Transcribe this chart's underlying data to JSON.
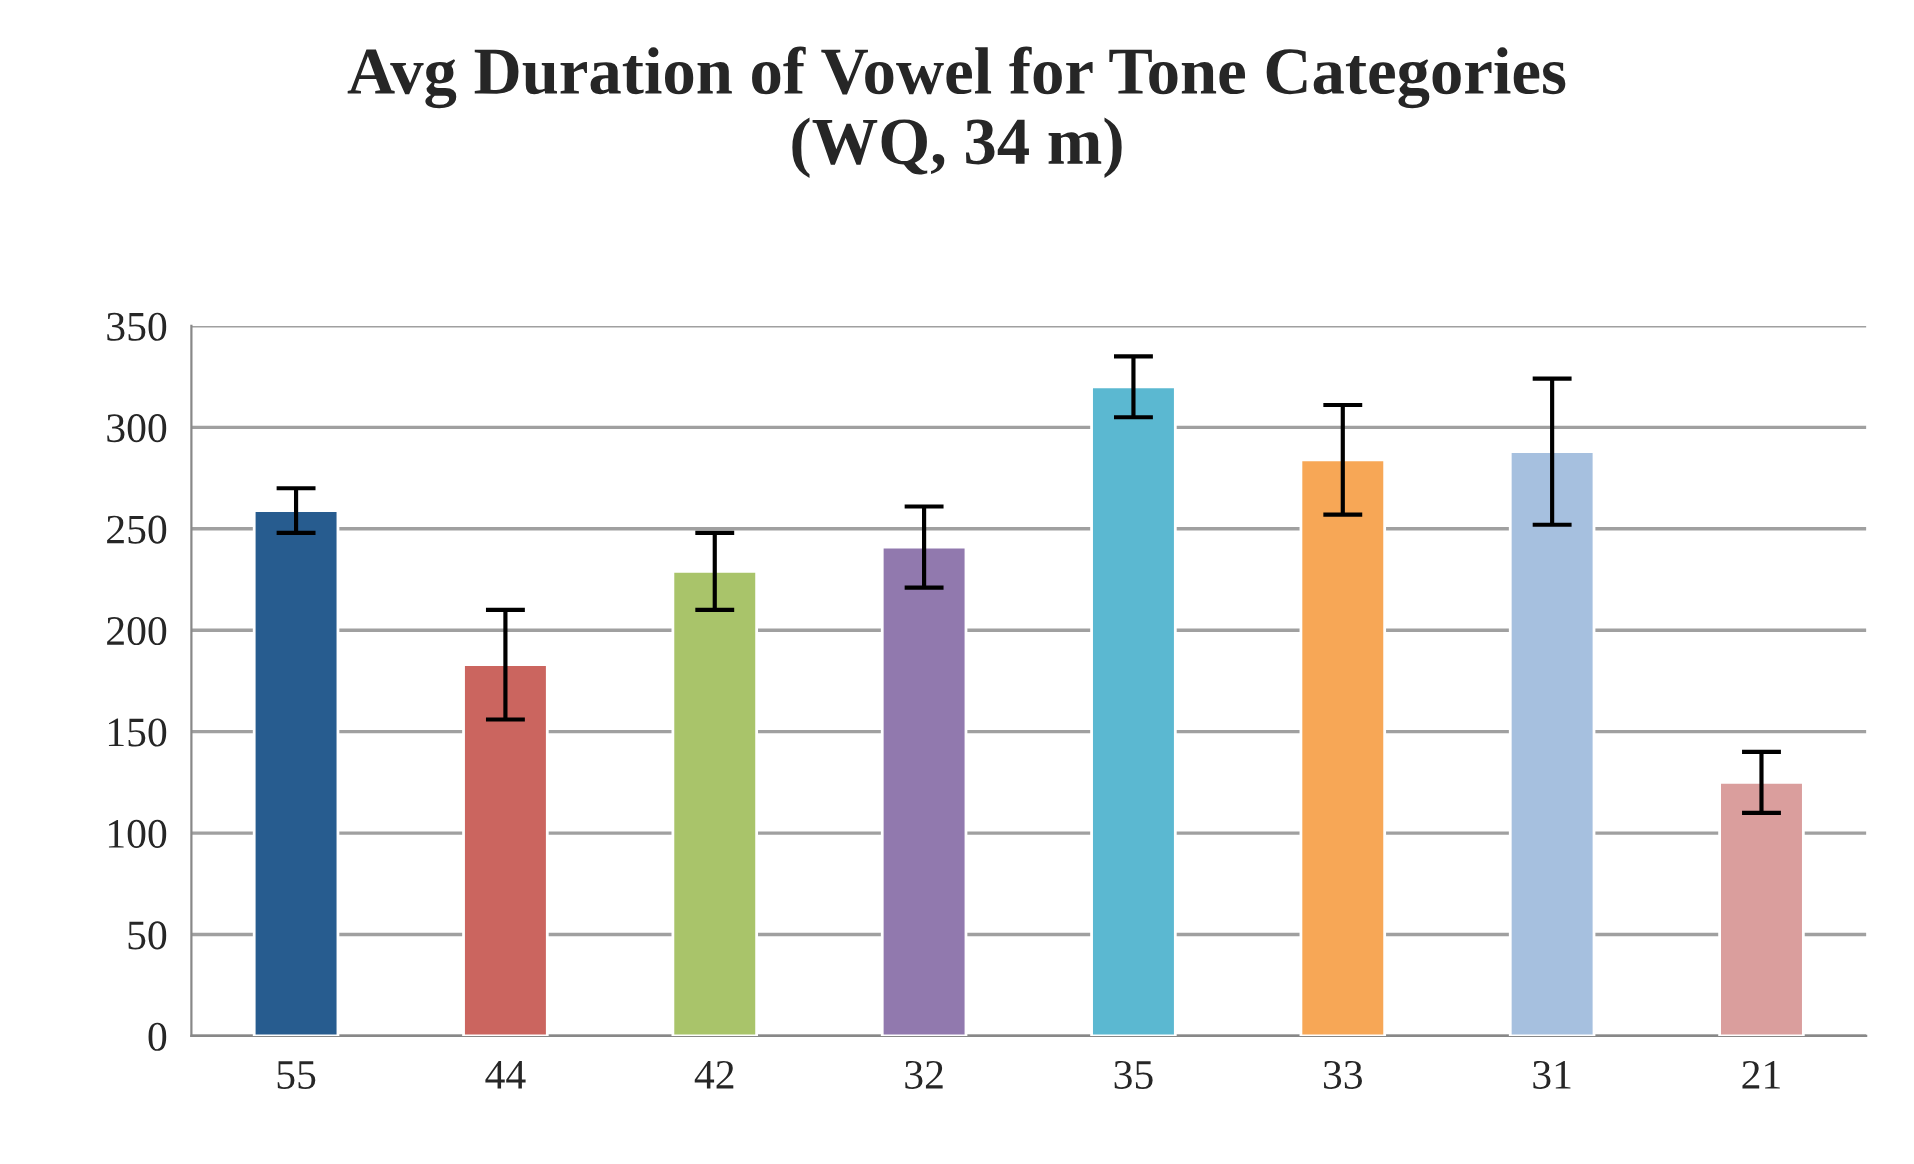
{
  "chart_data": {
    "type": "bar",
    "title": "Avg Duration of Vowel for Tone Categories\n(WQ, 34 m)",
    "categories": [
      "55",
      "44",
      "42",
      "32",
      "35",
      "33",
      "31",
      "21"
    ],
    "values": [
      259,
      183,
      229,
      241,
      320,
      284,
      288,
      125
    ],
    "errors": [
      11,
      27,
      19,
      20,
      15,
      27,
      36,
      15
    ],
    "colors": [
      "#275c8f",
      "#cb655f",
      "#a9c46a",
      "#9179ae",
      "#5bb8d1",
      "#f7a756",
      "#a6c0df",
      "#da9e9d"
    ],
    "ylim": [
      0,
      350
    ],
    "yticks": [
      0,
      50,
      100,
      150,
      200,
      250,
      300,
      350
    ],
    "grid": "y",
    "legend": false
  }
}
